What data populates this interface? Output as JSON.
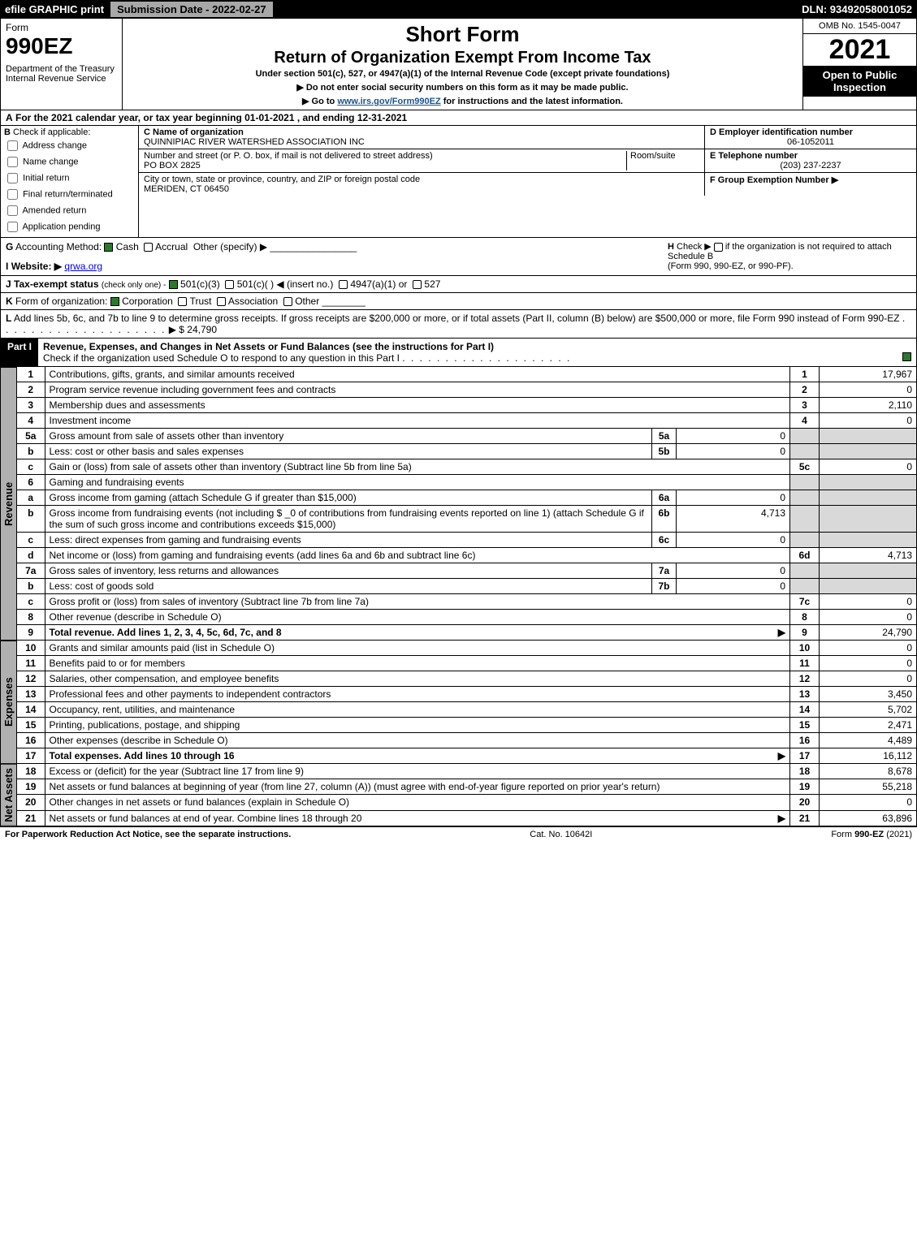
{
  "topbar": {
    "efile": "efile GRAPHIC print",
    "submission_label": "Submission Date - 2022-02-27",
    "dln": "DLN: 93492058001052"
  },
  "header": {
    "form_word": "Form",
    "form_number": "990EZ",
    "dept1": "Department of the Treasury",
    "dept2": "Internal Revenue Service",
    "title1": "Short Form",
    "title2": "Return of Organization Exempt From Income Tax",
    "subline": "Under section 501(c), 527, or 4947(a)(1) of the Internal Revenue Code (except private foundations)",
    "note1": "▶ Do not enter social security numbers on this form as it may be made public.",
    "note2": "▶ Go to www.irs.gov/Form990EZ for instructions and the latest information.",
    "note2_link": "www.irs.gov/Form990EZ",
    "omb": "OMB No. 1545-0047",
    "year": "2021",
    "inspection": "Open to Public Inspection"
  },
  "row_a": {
    "letter": "A",
    "text": "For the 2021 calendar year, or tax year beginning 01-01-2021 , and ending 12-31-2021"
  },
  "col_b": {
    "letter": "B",
    "label": "Check if applicable:",
    "opts": [
      "Address change",
      "Name change",
      "Initial return",
      "Final return/terminated",
      "Amended return",
      "Application pending"
    ]
  },
  "block_c": {
    "c_label": "C Name of organization",
    "c_val": "QUINNIPIAC RIVER WATERSHED ASSOCIATION INC",
    "street_label": "Number and street (or P. O. box, if mail is not delivered to street address)",
    "street_val": "PO BOX 2825",
    "room_label": "Room/suite",
    "city_label": "City or town, state or province, country, and ZIP or foreign postal code",
    "city_val": "MERIDEN, CT  06450"
  },
  "block_def": {
    "d_label": "D Employer identification number",
    "d_val": "06-1052011",
    "e_label": "E Telephone number",
    "e_val": "(203) 237-2237",
    "f_label": "F Group Exemption Number",
    "f_arrow": "▶"
  },
  "row_g": {
    "g_letter": "G",
    "g_label": "Accounting Method:",
    "g_cash": "Cash",
    "g_accrual": "Accrual",
    "g_other": "Other (specify) ▶",
    "h_letter": "H",
    "h_text1": "Check ▶",
    "h_text2": "if the organization is not required to attach Schedule B",
    "h_text3": "(Form 990, 990-EZ, or 990-PF)."
  },
  "row_i": {
    "letter": "I",
    "label": "Website: ▶",
    "val": "qrwa.org"
  },
  "row_j": {
    "letter": "J",
    "label": "Tax-exempt status",
    "note": "(check only one) -",
    "o1": "501(c)(3)",
    "o2": "501(c)(  ) ◀ (insert no.)",
    "o3": "4947(a)(1) or",
    "o4": "527"
  },
  "row_k": {
    "letter": "K",
    "label": "Form of organization:",
    "o1": "Corporation",
    "o2": "Trust",
    "o3": "Association",
    "o4": "Other"
  },
  "row_l": {
    "letter": "L",
    "text": "Add lines 5b, 6c, and 7b to line 9 to determine gross receipts. If gross receipts are $200,000 or more, or if total assets (Part II, column (B) below) are $500,000 or more, file Form 990 instead of Form 990-EZ",
    "amount_prefix": "▶ $",
    "amount": "24,790"
  },
  "part1": {
    "label": "Part I",
    "title": "Revenue, Expenses, and Changes in Net Assets or Fund Balances (see the instructions for Part I)",
    "check_line": "Check if the organization used Schedule O to respond to any question in this Part I"
  },
  "vtabs": {
    "revenue": "Revenue",
    "expenses": "Expenses",
    "netassets": "Net Assets"
  },
  "revenue_lines": [
    {
      "n": "1",
      "desc": "Contributions, gifts, grants, and similar amounts received",
      "rnum": "1",
      "rval": "17,967"
    },
    {
      "n": "2",
      "desc": "Program service revenue including government fees and contracts",
      "rnum": "2",
      "rval": "0"
    },
    {
      "n": "3",
      "desc": "Membership dues and assessments",
      "rnum": "3",
      "rval": "2,110"
    },
    {
      "n": "4",
      "desc": "Investment income",
      "rnum": "4",
      "rval": "0"
    },
    {
      "n": "5a",
      "desc": "Gross amount from sale of assets other than inventory",
      "mid": "5a",
      "midval": "0"
    },
    {
      "n": "b",
      "desc": "Less: cost or other basis and sales expenses",
      "mid": "5b",
      "midval": "0"
    },
    {
      "n": "c",
      "desc": "Gain or (loss) from sale of assets other than inventory (Subtract line 5b from line 5a)",
      "rnum": "5c",
      "rval": "0"
    },
    {
      "n": "6",
      "desc": "Gaming and fundraising events"
    },
    {
      "n": "a",
      "desc": "Gross income from gaming (attach Schedule G if greater than $15,000)",
      "mid": "6a",
      "midval": "0"
    },
    {
      "n": "b",
      "desc": "Gross income from fundraising events (not including $ _0 of contributions from fundraising events reported on line 1) (attach Schedule G if the sum of such gross income and contributions exceeds $15,000)",
      "mid": "6b",
      "midval": "4,713"
    },
    {
      "n": "c",
      "desc": "Less: direct expenses from gaming and fundraising events",
      "mid": "6c",
      "midval": "0"
    },
    {
      "n": "d",
      "desc": "Net income or (loss) from gaming and fundraising events (add lines 6a and 6b and subtract line 6c)",
      "rnum": "6d",
      "rval": "4,713"
    },
    {
      "n": "7a",
      "desc": "Gross sales of inventory, less returns and allowances",
      "mid": "7a",
      "midval": "0"
    },
    {
      "n": "b",
      "desc": "Less: cost of goods sold",
      "mid": "7b",
      "midval": "0"
    },
    {
      "n": "c",
      "desc": "Gross profit or (loss) from sales of inventory (Subtract line 7b from line 7a)",
      "rnum": "7c",
      "rval": "0"
    },
    {
      "n": "8",
      "desc": "Other revenue (describe in Schedule O)",
      "rnum": "8",
      "rval": "0"
    },
    {
      "n": "9",
      "desc": "Total revenue. Add lines 1, 2, 3, 4, 5c, 6d, 7c, and 8",
      "rnum": "9",
      "rval": "24,790",
      "bold": true,
      "arrow": true
    }
  ],
  "expense_lines": [
    {
      "n": "10",
      "desc": "Grants and similar amounts paid (list in Schedule O)",
      "rnum": "10",
      "rval": "0"
    },
    {
      "n": "11",
      "desc": "Benefits paid to or for members",
      "rnum": "11",
      "rval": "0"
    },
    {
      "n": "12",
      "desc": "Salaries, other compensation, and employee benefits",
      "rnum": "12",
      "rval": "0"
    },
    {
      "n": "13",
      "desc": "Professional fees and other payments to independent contractors",
      "rnum": "13",
      "rval": "3,450"
    },
    {
      "n": "14",
      "desc": "Occupancy, rent, utilities, and maintenance",
      "rnum": "14",
      "rval": "5,702"
    },
    {
      "n": "15",
      "desc": "Printing, publications, postage, and shipping",
      "rnum": "15",
      "rval": "2,471"
    },
    {
      "n": "16",
      "desc": "Other expenses (describe in Schedule O)",
      "rnum": "16",
      "rval": "4,489"
    },
    {
      "n": "17",
      "desc": "Total expenses. Add lines 10 through 16",
      "rnum": "17",
      "rval": "16,112",
      "bold": true,
      "arrow": true
    }
  ],
  "netasset_lines": [
    {
      "n": "18",
      "desc": "Excess or (deficit) for the year (Subtract line 17 from line 9)",
      "rnum": "18",
      "rval": "8,678"
    },
    {
      "n": "19",
      "desc": "Net assets or fund balances at beginning of year (from line 27, column (A)) (must agree with end-of-year figure reported on prior year's return)",
      "rnum": "19",
      "rval": "55,218"
    },
    {
      "n": "20",
      "desc": "Other changes in net assets or fund balances (explain in Schedule O)",
      "rnum": "20",
      "rval": "0"
    },
    {
      "n": "21",
      "desc": "Net assets or fund balances at end of year. Combine lines 18 through 20",
      "rnum": "21",
      "rval": "63,896",
      "arrow": true
    }
  ],
  "footer": {
    "left": "For Paperwork Reduction Act Notice, see the separate instructions.",
    "mid": "Cat. No. 10642I",
    "right_prefix": "Form ",
    "right_form": "990-EZ",
    "right_suffix": " (2021)"
  },
  "colors": {
    "black": "#000000",
    "shade": "#d9d9d9",
    "vtab_bg": "#b0b0b0",
    "link": "#1a5490",
    "check_green": "#2a7a2a"
  }
}
